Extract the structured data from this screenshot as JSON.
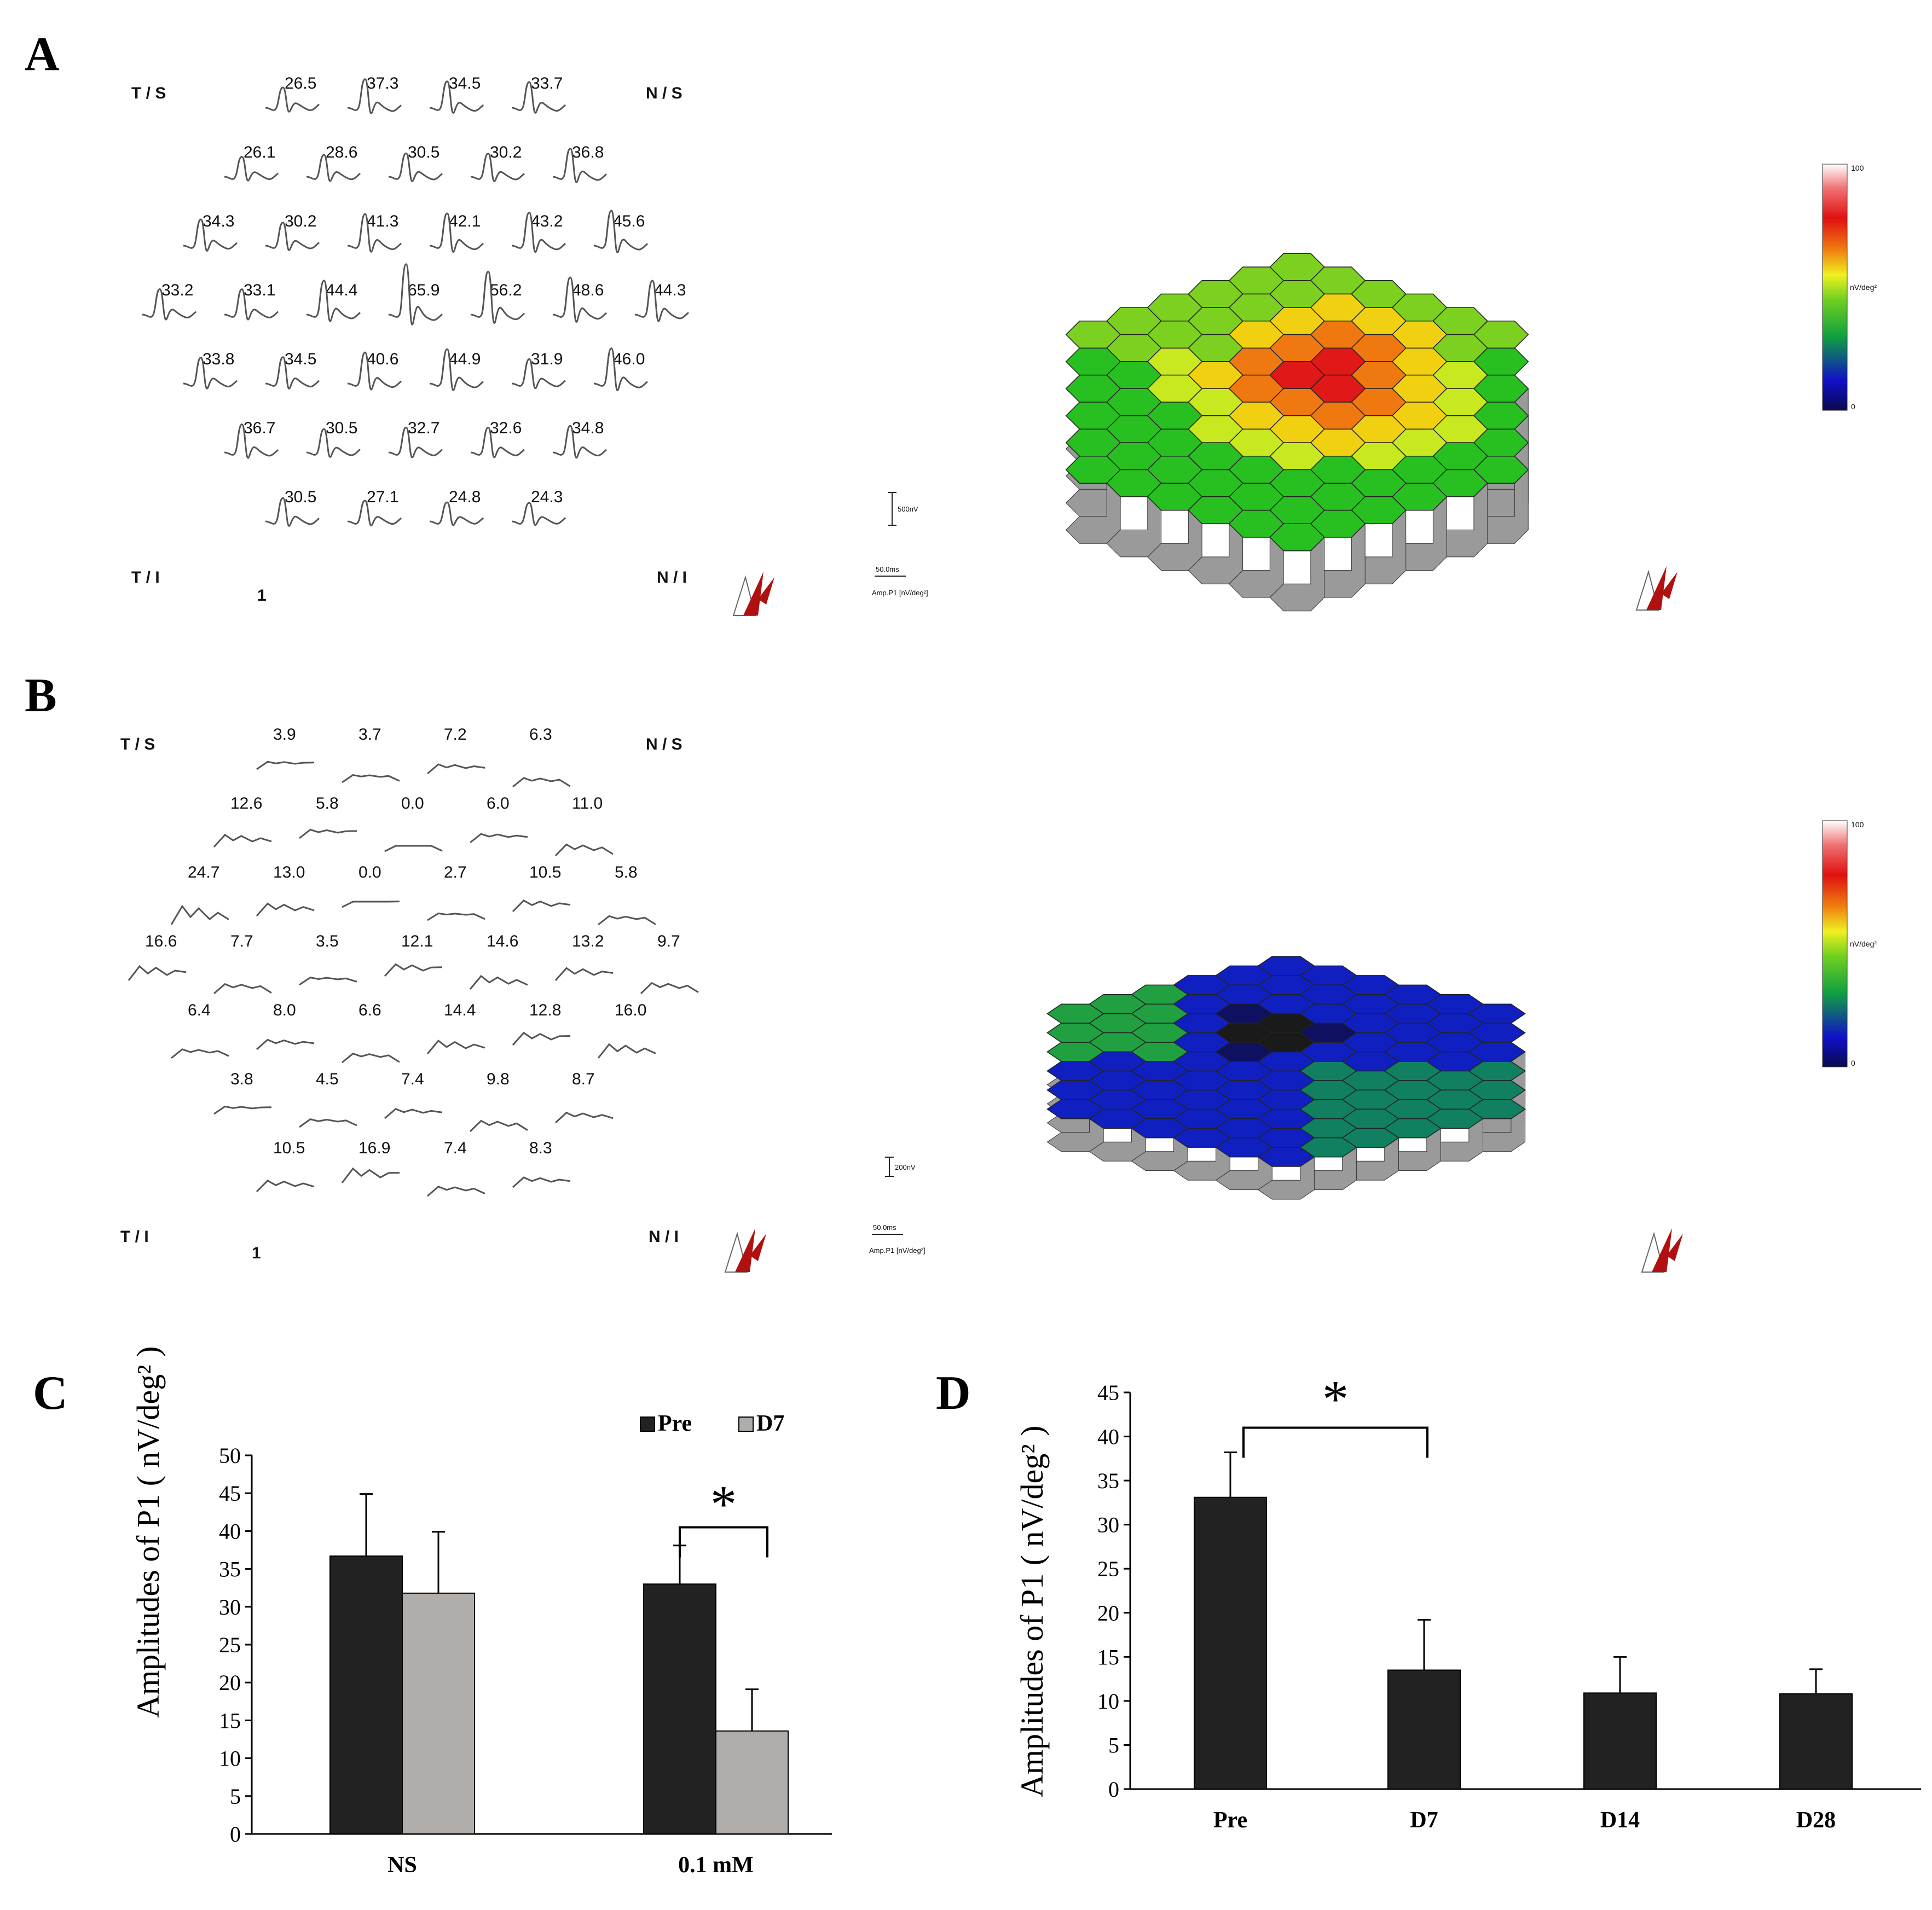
{
  "panel_a": {
    "letter": "A",
    "corners": {
      "ts": "T / S",
      "ns": "N / S",
      "ti": "T / I",
      "ni": "N / I"
    },
    "rows": [
      [
        "26.5",
        "37.3",
        "34.5",
        "33.7"
      ],
      [
        "26.1",
        "28.6",
        "30.5",
        "30.2",
        "36.8"
      ],
      [
        "34.3",
        "30.2",
        "41.3",
        "42.1",
        "43.2",
        "45.6"
      ],
      [
        "33.2",
        "33.1",
        "44.4",
        "65.9",
        "56.2",
        "48.6",
        "44.3"
      ],
      [
        "33.8",
        "34.5",
        "40.6",
        "44.9",
        "31.9",
        "46.0"
      ],
      [
        "36.7",
        "30.5",
        "32.7",
        "32.6",
        "34.8"
      ],
      [
        "30.5",
        "27.1",
        "24.8",
        "24.3"
      ]
    ],
    "eye_label": "1",
    "scale_voltage": "500nV",
    "scale_time": "50.0ms",
    "amp_label": "Amp.P1 [nV/deg²]",
    "colorbar": {
      "max": "100",
      "mid": "nV/deg²",
      "min": "0"
    }
  },
  "panel_b": {
    "letter": "B",
    "corners": {
      "ts": "T / S",
      "ns": "N / S",
      "ti": "T / I",
      "ni": "N / I"
    },
    "rows": [
      [
        "3.9",
        "3.7",
        "7.2",
        "6.3"
      ],
      [
        "12.6",
        "5.8",
        "0.0",
        "6.0",
        "11.0"
      ],
      [
        "24.7",
        "13.0",
        "0.0",
        "2.7",
        "10.5",
        "5.8"
      ],
      [
        "16.6",
        "7.7",
        "3.5",
        "12.1",
        "14.6",
        "13.2",
        "9.7"
      ],
      [
        "6.4",
        "8.0",
        "6.6",
        "14.4",
        "12.8",
        "16.0"
      ],
      [
        "3.8",
        "4.5",
        "7.4",
        "9.8",
        "8.7"
      ],
      [
        "10.5",
        "16.9",
        "7.4",
        "8.3"
      ]
    ],
    "eye_label": "1",
    "scale_voltage": "200nV",
    "scale_time": "50.0ms",
    "amp_label": "Amp.P1 [nV/deg²]",
    "colorbar": {
      "max": "100",
      "mid": "nV/deg²",
      "min": "0"
    }
  },
  "colors": {
    "pre": "#222222",
    "d7": "#b0adaa",
    "wave": "#555555"
  },
  "chart_data": [
    {
      "panel": "C",
      "type": "bar",
      "title": "",
      "ylabel": "Amplitudes of P1 ( nV/deg² )",
      "xlabel": "",
      "categories": [
        "NS",
        "0.1 mM"
      ],
      "series": [
        {
          "name": "Pre",
          "values": [
            36.7,
            33.0
          ],
          "errors": [
            8.2,
            5.1
          ]
        },
        {
          "name": "D7",
          "values": [
            31.8,
            13.6
          ],
          "errors": [
            8.1,
            5.5
          ]
        }
      ],
      "ylim": [
        0,
        50
      ],
      "yticks": [
        0,
        5,
        10,
        15,
        20,
        25,
        30,
        35,
        40,
        45,
        50
      ],
      "significance": "*",
      "legend": [
        "Pre",
        "D7"
      ]
    },
    {
      "panel": "D",
      "type": "bar",
      "title": "",
      "ylabel": "Amplitudes of P1 ( nV/deg² )",
      "xlabel": "",
      "categories": [
        "Pre",
        "D7",
        "D14",
        "D28"
      ],
      "series": [
        {
          "name": "P1",
          "values": [
            33.1,
            13.5,
            10.9,
            10.8
          ],
          "errors": [
            5.1,
            5.7,
            4.1,
            2.8
          ]
        }
      ],
      "ylim": [
        0,
        45
      ],
      "yticks": [
        0,
        5,
        10,
        15,
        20,
        25,
        30,
        35,
        40,
        45
      ],
      "significance": "*"
    }
  ]
}
